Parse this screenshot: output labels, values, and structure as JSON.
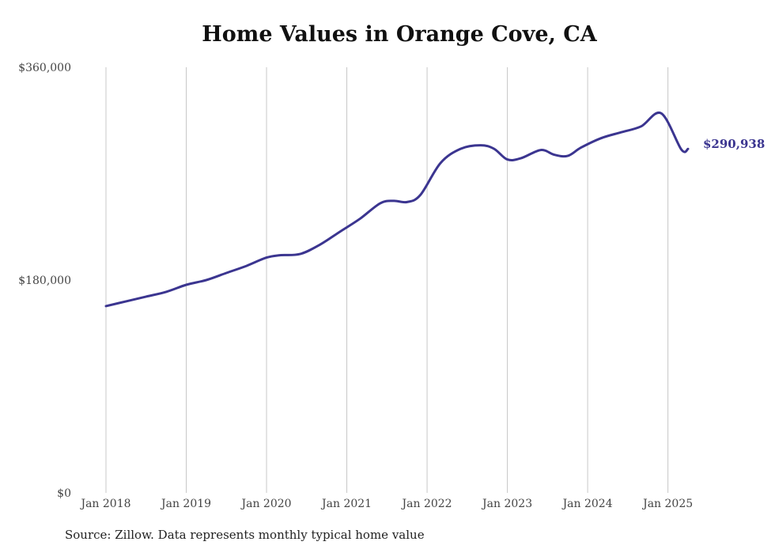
{
  "chart_data": {
    "type": "line",
    "title": "Home Values in Orange Cove, CA",
    "source": "Source: Zillow. Data represents monthly typical home value",
    "xlabel": "",
    "ylabel": "",
    "ylim": [
      0,
      360000
    ],
    "y_ticks": [
      "$0",
      "$180,000",
      "$360,000"
    ],
    "x_ticks": [
      "Jan 2018",
      "Jan 2019",
      "Jan 2020",
      "Jan 2021",
      "Jan 2022",
      "Jan 2023",
      "Jan 2024",
      "Jan 2025"
    ],
    "grid": "vertical",
    "line_color": "#3b3590",
    "end_label": "$290,938",
    "series": [
      {
        "x": [
          "2018-01",
          "2018-04",
          "2018-07",
          "2018-10",
          "2019-01",
          "2019-04",
          "2019-07",
          "2019-10",
          "2020-01",
          "2020-03",
          "2020-06",
          "2020-09",
          "2020-12",
          "2021-03",
          "2021-06",
          "2021-08",
          "2021-10",
          "2021-12",
          "2022-03",
          "2022-06",
          "2022-09",
          "2022-11",
          "2023-01",
          "2023-03",
          "2023-06",
          "2023-08",
          "2023-10",
          "2023-12",
          "2024-03",
          "2024-06",
          "2024-09",
          "2024-12",
          "2025-03",
          "2025-04"
        ],
        "values": [
          158000,
          162000,
          166000,
          170000,
          176000,
          180000,
          186000,
          192000,
          199000,
          201000,
          202000,
          210000,
          221000,
          232000,
          245000,
          247000,
          246000,
          252000,
          279000,
          291000,
          294000,
          291000,
          282000,
          283000,
          290000,
          286000,
          285000,
          292000,
          300000,
          305000,
          310000,
          321000,
          290500,
          290938
        ]
      }
    ]
  }
}
